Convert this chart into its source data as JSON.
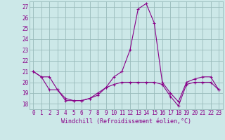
{
  "xlabel": "Windchill (Refroidissement éolien,°C)",
  "x": [
    0,
    1,
    2,
    3,
    4,
    5,
    6,
    7,
    8,
    9,
    10,
    11,
    12,
    13,
    14,
    15,
    16,
    17,
    18,
    19,
    20,
    21,
    22,
    23
  ],
  "line1": [
    21.0,
    20.5,
    20.5,
    19.3,
    18.5,
    18.3,
    18.3,
    18.5,
    18.8,
    19.5,
    20.5,
    21.0,
    23.0,
    26.8,
    27.3,
    25.5,
    20.0,
    19.0,
    18.2,
    20.0,
    20.3,
    20.5,
    20.5,
    19.3
  ],
  "line2": [
    21.0,
    20.5,
    19.3,
    19.3,
    18.3,
    18.3,
    18.3,
    18.5,
    19.0,
    19.5,
    19.8,
    20.0,
    20.0,
    20.0,
    20.0,
    20.0,
    19.8,
    18.7,
    17.8,
    19.8,
    20.0,
    20.0,
    20.0,
    19.3
  ],
  "line_color": "#880088",
  "bg_color": "#cce8e8",
  "grid_color": "#99bbbb",
  "ylim": [
    17.5,
    27.5
  ],
  "yticks": [
    18,
    19,
    20,
    21,
    22,
    23,
    24,
    25,
    26,
    27
  ],
  "xticks": [
    0,
    1,
    2,
    3,
    4,
    5,
    6,
    7,
    8,
    9,
    10,
    11,
    12,
    13,
    14,
    15,
    16,
    17,
    18,
    19,
    20,
    21,
    22,
    23
  ],
  "tick_fontsize": 5.5,
  "label_fontsize": 6.0
}
